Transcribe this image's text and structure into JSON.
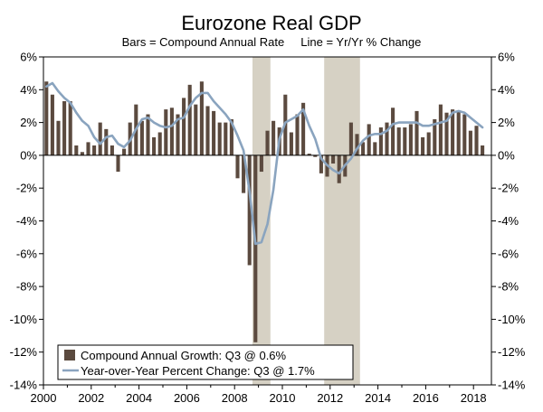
{
  "chart_data": {
    "type": "bar+line",
    "title": "Eurozone Real GDP",
    "subtitle": "Bars = Compound Annual Rate     Line = Yr/Yr % Change",
    "ylim": [
      -14,
      6
    ],
    "y_ticks": [
      6,
      4,
      2,
      0,
      -2,
      -4,
      -6,
      -8,
      -10,
      -12,
      -14
    ],
    "y_tick_labels": [
      "6%",
      "4%",
      "2%",
      "0%",
      "-2%",
      "-4%",
      "-6%",
      "-8%",
      "-10%",
      "-12%",
      "-14%"
    ],
    "xlim": [
      2000.0,
      2018.75
    ],
    "x_ticks": [
      2000,
      2002,
      2004,
      2006,
      2008,
      2010,
      2012,
      2014,
      2016,
      2018
    ],
    "x_tick_labels": [
      "2000",
      "2002",
      "2004",
      "2006",
      "2008",
      "2010",
      "2012",
      "2014",
      "2016",
      "2018"
    ],
    "recessions": [
      [
        2008.75,
        2009.5
      ],
      [
        2011.75,
        2013.25
      ]
    ],
    "bar_color": "#5b4a3f",
    "line_color": "#8aa4bf",
    "recession_color": "#d6d1c4",
    "series": [
      {
        "name": "Compound Annual Growth",
        "type": "bar",
        "start": 2000.0,
        "step": 0.25,
        "values": [
          4.5,
          3.7,
          2.1,
          3.3,
          3.3,
          0.6,
          0.2,
          0.8,
          0.6,
          2.0,
          1.6,
          0.6,
          -1.0,
          0.4,
          2.0,
          3.1,
          2.1,
          2.5,
          1.1,
          1.4,
          2.8,
          2.9,
          2.5,
          3.5,
          4.3,
          3.1,
          4.5,
          3.0,
          2.7,
          2.0,
          2.0,
          2.2,
          -1.4,
          -2.3,
          -6.7,
          -11.4,
          -1.0,
          1.5,
          2.1,
          1.7,
          3.7,
          1.4,
          2.5,
          3.2,
          0.1,
          -0.1,
          -1.1,
          -1.3,
          -0.5,
          -1.7,
          -1.3,
          2.0,
          1.3,
          0.8,
          1.9,
          0.8,
          1.7,
          2.0,
          2.9,
          1.7,
          1.7,
          1.9,
          2.7,
          1.1,
          1.4,
          2.2,
          3.1,
          2.6,
          2.8,
          2.7,
          2.5,
          1.5,
          1.8,
          0.6
        ]
      },
      {
        "name": "Year-over-Year Percent Change",
        "type": "line",
        "start": 2000.0,
        "step": 0.25,
        "values": [
          4.2,
          4.4,
          3.9,
          3.5,
          3.2,
          2.6,
          2.1,
          1.8,
          1.1,
          0.7,
          1.1,
          1.2,
          0.7,
          0.5,
          0.9,
          1.6,
          2.2,
          2.3,
          2.0,
          1.8,
          1.7,
          1.8,
          2.2,
          2.3,
          3.0,
          3.5,
          3.8,
          3.8,
          3.3,
          2.9,
          2.5,
          2.0,
          1.2,
          0.3,
          -2.2,
          -5.4,
          -5.3,
          -4.2,
          -2.1,
          1.0,
          2.0,
          2.2,
          2.4,
          2.8,
          1.8,
          1.0,
          -0.2,
          -0.6,
          -0.9,
          -1.1,
          -0.6,
          -0.2,
          0.4,
          0.9,
          1.2,
          1.3,
          1.3,
          1.5,
          1.9,
          2.0,
          2.0,
          2.0,
          2.0,
          1.8,
          1.8,
          1.9,
          2.0,
          2.1,
          2.6,
          2.7,
          2.6,
          2.3,
          2.0,
          1.7
        ]
      }
    ],
    "legend": [
      "Compound Annual Growth: Q3 @ 0.6%",
      "Year-over-Year Percent Change: Q3 @ 1.7%"
    ]
  }
}
